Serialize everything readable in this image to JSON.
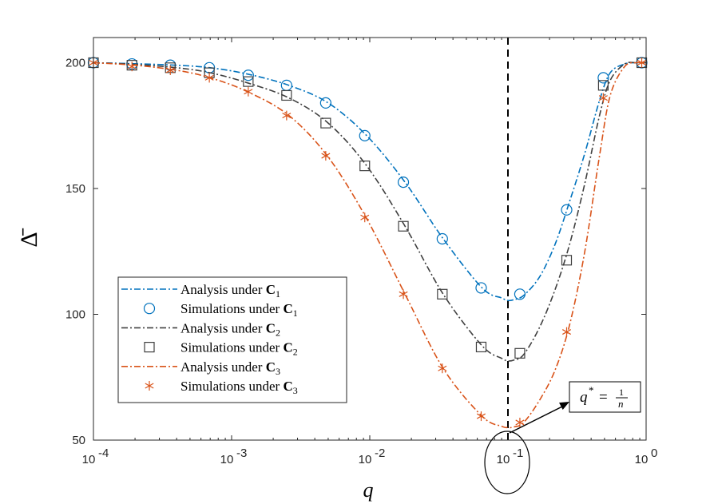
{
  "chart_data": {
    "type": "line",
    "xscale": "log",
    "xlim": [
      0.0001,
      1
    ],
    "ylim": [
      50,
      210
    ],
    "xlabel": "q",
    "ylabel": "Δ̄",
    "xticks": [
      {
        "value": 0.0001,
        "base": "10",
        "exp": "-4"
      },
      {
        "value": 0.001,
        "base": "10",
        "exp": "-3"
      },
      {
        "value": 0.01,
        "base": "10",
        "exp": "-2"
      },
      {
        "value": 0.1,
        "base": "10",
        "exp": "-1"
      },
      {
        "value": 1,
        "base": "10",
        "exp": "0"
      }
    ],
    "yticks": [
      50,
      100,
      150,
      200
    ],
    "vline_x": 0.1,
    "annotation": {
      "text_lhs": "q",
      "text_sup": "*",
      "text_eq": "=",
      "num": "1",
      "den": "n",
      "ellipse_x": 0.1,
      "arrow_to_x": 0.1
    },
    "legend": {
      "location": "bottom-left"
    },
    "series": [
      {
        "name": "Analysis under C1",
        "label_text": "Analysis under ",
        "label_bold": "C",
        "label_sub": "1",
        "kind": "line",
        "color": "#0072BD",
        "x": [
          0.0001,
          0.0002,
          0.0004,
          0.0007,
          0.0013,
          0.0026,
          0.005,
          0.0095,
          0.018,
          0.034,
          0.065,
          0.09,
          0.1,
          0.11,
          0.13,
          0.17,
          0.22,
          0.28,
          0.36,
          0.46,
          0.55,
          0.7,
          0.85,
          1
        ],
        "y": [
          200,
          199.6,
          199,
          198,
          195.5,
          191,
          184,
          171,
          152.5,
          130,
          110.5,
          106.5,
          105.5,
          105.8,
          107.5,
          115,
          128,
          145,
          164,
          185,
          196,
          199.5,
          200,
          200
        ]
      },
      {
        "name": "Simulations under C1",
        "label_text": "Simulations under ",
        "label_bold": "C",
        "label_sub": "1",
        "kind": "marker",
        "marker": "circle",
        "color": "#0072BD",
        "x": [
          0.0001,
          0.00019,
          0.00036,
          0.00069,
          0.00132,
          0.0025,
          0.0048,
          0.0092,
          0.0175,
          0.0335,
          0.064,
          0.122,
          0.266,
          0.49,
          0.93
        ],
        "y": [
          200,
          199.5,
          199,
          198,
          195,
          191,
          184,
          171,
          152.5,
          130,
          110.5,
          108,
          141.5,
          194,
          200
        ]
      },
      {
        "name": "Analysis under C2",
        "label_text": "Analysis under ",
        "label_bold": "C",
        "label_sub": "2",
        "kind": "line",
        "color": "#404040",
        "x": [
          0.0001,
          0.0002,
          0.0004,
          0.0007,
          0.0013,
          0.0026,
          0.005,
          0.0095,
          0.018,
          0.034,
          0.065,
          0.09,
          0.1,
          0.11,
          0.13,
          0.17,
          0.22,
          0.28,
          0.36,
          0.46,
          0.55,
          0.7,
          0.85,
          1
        ],
        "y": [
          200,
          199.3,
          198,
          196,
          192,
          186,
          176,
          159,
          135,
          108,
          87.5,
          82.5,
          81.5,
          81.8,
          84,
          95,
          110,
          128,
          152,
          179,
          193,
          199.5,
          200,
          200
        ]
      },
      {
        "name": "Simulations under C2",
        "label_text": "Simulations under ",
        "label_bold": "C",
        "label_sub": "2",
        "kind": "marker",
        "marker": "square",
        "color": "#404040",
        "x": [
          0.0001,
          0.00019,
          0.00036,
          0.00069,
          0.00132,
          0.0025,
          0.0048,
          0.0092,
          0.0175,
          0.0335,
          0.064,
          0.122,
          0.266,
          0.49,
          0.93
        ],
        "y": [
          200,
          199,
          198,
          196,
          192.5,
          187,
          176,
          159,
          135,
          108,
          87,
          84.5,
          121.5,
          191,
          200
        ]
      },
      {
        "name": "Analysis under C3",
        "label_text": "Analysis under ",
        "label_bold": "C",
        "label_sub": "3",
        "kind": "line",
        "color": "#D95319",
        "x": [
          0.0001,
          0.0002,
          0.0004,
          0.0007,
          0.0013,
          0.0026,
          0.005,
          0.0095,
          0.018,
          0.034,
          0.065,
          0.09,
          0.1,
          0.11,
          0.13,
          0.17,
          0.22,
          0.28,
          0.36,
          0.46,
          0.55,
          0.7,
          0.85,
          1
        ],
        "y": [
          200,
          199,
          197,
          194,
          188.5,
          179,
          162.5,
          138,
          108,
          78.5,
          59.5,
          55.5,
          55,
          55.2,
          57,
          66,
          78,
          96,
          125,
          163,
          187,
          198.5,
          200,
          200
        ]
      },
      {
        "name": "Simulations under C3",
        "label_text": "Simulations under ",
        "label_bold": "C",
        "label_sub": "3",
        "kind": "marker",
        "marker": "asterisk",
        "color": "#D95319",
        "x": [
          0.0001,
          0.00019,
          0.00036,
          0.00069,
          0.00132,
          0.0025,
          0.0048,
          0.0092,
          0.0175,
          0.0335,
          0.064,
          0.122,
          0.266,
          0.49,
          0.93
        ],
        "y": [
          200,
          198.5,
          197,
          194,
          188.5,
          179,
          163,
          138.5,
          108,
          78.5,
          59.5,
          57,
          93,
          186,
          200
        ]
      }
    ]
  }
}
